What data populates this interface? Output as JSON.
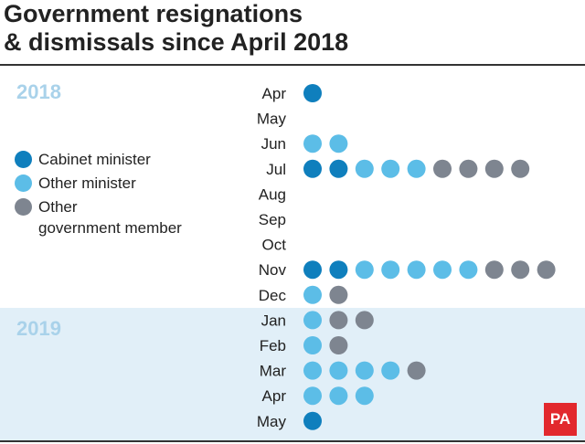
{
  "title_lines": [
    "Government resignations",
    "& dismissals since April 2018"
  ],
  "years": [
    "2018",
    "2019"
  ],
  "legend": [
    {
      "key": "cabinet",
      "label_lines": [
        "Cabinet minister"
      ],
      "color": "#0f7fbd"
    },
    {
      "key": "other_minister",
      "label_lines": [
        "Other minister"
      ],
      "color": "#5cbde7"
    },
    {
      "key": "other_member",
      "label_lines": [
        "Other",
        "government member"
      ],
      "color": "#7e8590"
    }
  ],
  "logo": "PA",
  "chart_data": {
    "type": "scatter",
    "title": "Government resignations & dismissals since April 2018",
    "categories": [
      "Apr",
      "May",
      "Jun",
      "Jul",
      "Aug",
      "Sep",
      "Oct",
      "Nov",
      "Dec",
      "Jan",
      "Feb",
      "Mar",
      "Apr",
      "May"
    ],
    "category_years": [
      "2018",
      "2018",
      "2018",
      "2018",
      "2018",
      "2018",
      "2018",
      "2018",
      "2018",
      "2019",
      "2019",
      "2019",
      "2019",
      "2019"
    ],
    "series": [
      {
        "name": "Cabinet minister",
        "color": "#0f7fbd",
        "values": [
          1,
          0,
          0,
          2,
          0,
          0,
          0,
          2,
          0,
          0,
          0,
          0,
          0,
          1
        ]
      },
      {
        "name": "Other minister",
        "color": "#5cbde7",
        "values": [
          0,
          0,
          2,
          3,
          0,
          0,
          0,
          5,
          1,
          1,
          1,
          4,
          3,
          0
        ]
      },
      {
        "name": "Other government member",
        "color": "#7e8590",
        "values": [
          0,
          0,
          0,
          4,
          0,
          0,
          0,
          3,
          1,
          2,
          1,
          1,
          0,
          0
        ]
      }
    ]
  }
}
